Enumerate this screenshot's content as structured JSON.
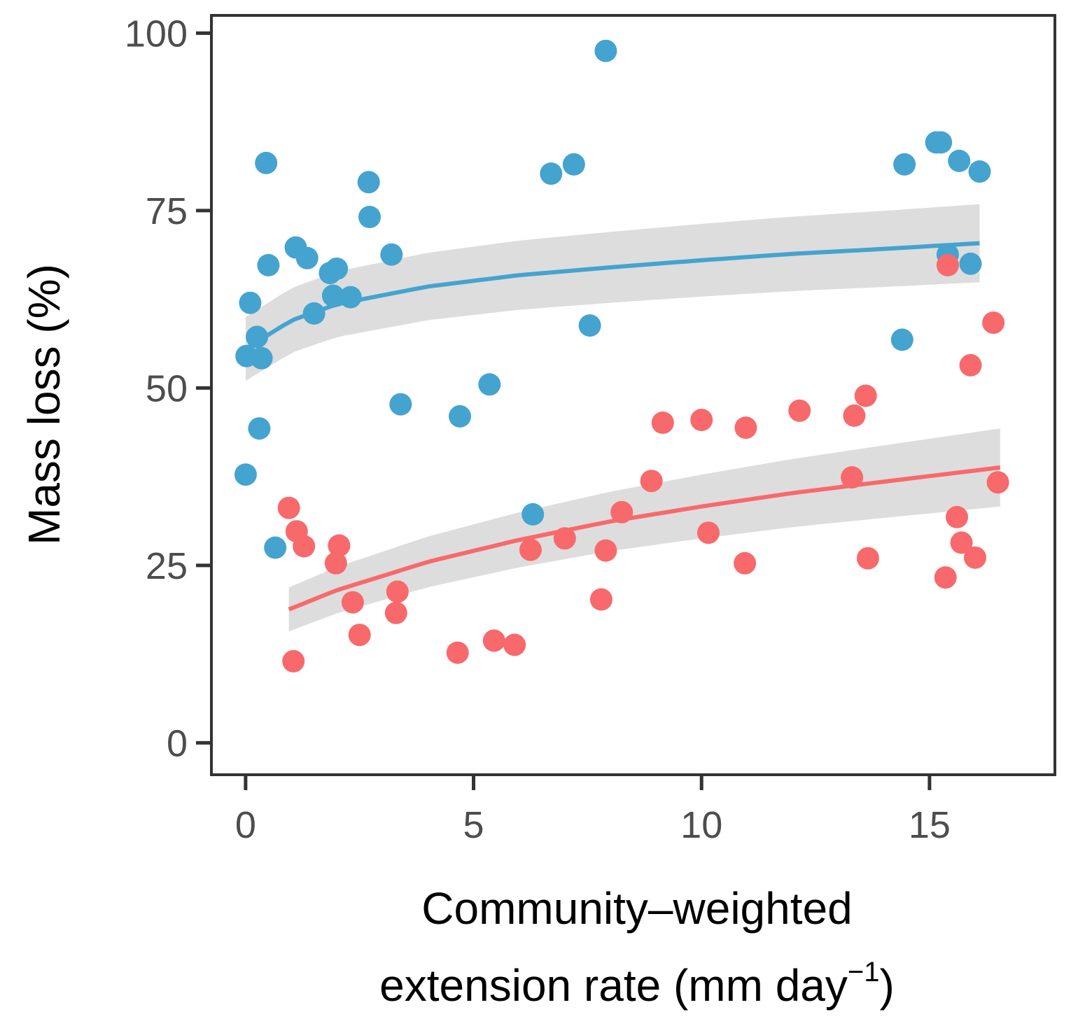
{
  "chart_data": {
    "type": "scatter",
    "xlabel_line1": "Community–weighted",
    "xlabel_line2_main": "extension rate (mm day",
    "xlabel_line2_sup": "−1",
    "xlabel_line2_end": ")",
    "ylabel": "Mass loss (%)",
    "xlim": [
      -0.75,
      17.75
    ],
    "ylim": [
      -4.5,
      102.5
    ],
    "x_ticks": [
      0,
      5,
      10,
      15
    ],
    "x_tick_labels": [
      "0",
      "5",
      "10",
      "15"
    ],
    "y_ticks": [
      0,
      25,
      50,
      75,
      100
    ],
    "y_tick_labels": [
      "0",
      "25",
      "50",
      "75",
      "100"
    ],
    "grid": false,
    "legend": "none",
    "colors": {
      "blue": "#45a3cf",
      "red": "#f8696b",
      "ribbon": "#dddddd",
      "axis": "#333333"
    },
    "series": [
      {
        "color": "#45a3cf",
        "points": [
          [
            0.0,
            37.8
          ],
          [
            0.02,
            54.5
          ],
          [
            0.1,
            62.0
          ],
          [
            0.25,
            57.2
          ],
          [
            0.3,
            44.3
          ],
          [
            0.35,
            54.2
          ],
          [
            0.45,
            81.7
          ],
          [
            0.5,
            67.3
          ],
          [
            0.65,
            27.5
          ],
          [
            1.1,
            69.8
          ],
          [
            1.35,
            68.3
          ],
          [
            1.5,
            60.5
          ],
          [
            1.85,
            66.2
          ],
          [
            1.92,
            63.0
          ],
          [
            2.0,
            66.8
          ],
          [
            2.3,
            62.8
          ],
          [
            2.7,
            79.0
          ],
          [
            2.72,
            74.1
          ],
          [
            3.2,
            68.8
          ],
          [
            3.4,
            47.7
          ],
          [
            4.7,
            46.0
          ],
          [
            5.35,
            50.5
          ],
          [
            6.3,
            32.2
          ],
          [
            6.7,
            80.2
          ],
          [
            7.2,
            81.5
          ],
          [
            7.55,
            58.8
          ],
          [
            7.9,
            97.5
          ],
          [
            14.4,
            56.8
          ],
          [
            14.45,
            81.5
          ],
          [
            15.15,
            84.6
          ],
          [
            15.25,
            84.6
          ],
          [
            15.4,
            68.8
          ],
          [
            15.65,
            82.0
          ],
          [
            15.9,
            67.5
          ],
          [
            16.1,
            80.5
          ]
        ],
        "fit": {
          "x_range": [
            0.0,
            16.1
          ],
          "points": [
            [
              0.0,
              55.5
            ],
            [
              1.0,
              59.5
            ],
            [
              2.0,
              61.8
            ],
            [
              4.0,
              64.3
            ],
            [
              6.0,
              65.9
            ],
            [
              8.0,
              67.0
            ],
            [
              10.0,
              68.0
            ],
            [
              12.0,
              68.9
            ],
            [
              14.0,
              69.6
            ],
            [
              16.1,
              70.4
            ]
          ]
        },
        "ribbon_halfwidth_start": 4.5,
        "ribbon_halfwidth_end": 5.5
      },
      {
        "color": "#f8696b",
        "points": [
          [
            0.95,
            33.1
          ],
          [
            1.05,
            11.5
          ],
          [
            1.12,
            29.8
          ],
          [
            1.28,
            27.7
          ],
          [
            1.98,
            25.3
          ],
          [
            2.05,
            27.8
          ],
          [
            2.35,
            19.8
          ],
          [
            2.5,
            15.2
          ],
          [
            3.3,
            18.3
          ],
          [
            3.33,
            21.3
          ],
          [
            4.65,
            12.7
          ],
          [
            5.45,
            14.4
          ],
          [
            5.9,
            13.8
          ],
          [
            6.25,
            27.2
          ],
          [
            7.0,
            28.8
          ],
          [
            7.8,
            20.2
          ],
          [
            7.9,
            27.1
          ],
          [
            8.25,
            32.5
          ],
          [
            8.9,
            36.9
          ],
          [
            9.15,
            45.1
          ],
          [
            10.0,
            45.5
          ],
          [
            10.15,
            29.6
          ],
          [
            10.95,
            25.3
          ],
          [
            10.97,
            44.4
          ],
          [
            12.15,
            46.8
          ],
          [
            13.3,
            37.4
          ],
          [
            13.35,
            46.1
          ],
          [
            13.6,
            48.9
          ],
          [
            13.65,
            26.0
          ],
          [
            15.35,
            23.3
          ],
          [
            15.4,
            67.3
          ],
          [
            15.6,
            31.8
          ],
          [
            15.7,
            28.2
          ],
          [
            15.9,
            53.2
          ],
          [
            16.0,
            26.1
          ],
          [
            16.4,
            59.2
          ],
          [
            16.5,
            36.7
          ]
        ],
        "fit": {
          "x_range": [
            0.95,
            16.55
          ],
          "points": [
            [
              0.95,
              18.8
            ],
            [
              2.0,
              21.5
            ],
            [
              4.0,
              25.5
            ],
            [
              6.0,
              28.6
            ],
            [
              8.0,
              31.2
            ],
            [
              10.0,
              33.3
            ],
            [
              12.0,
              35.2
            ],
            [
              14.0,
              36.8
            ],
            [
              16.55,
              38.8
            ]
          ]
        },
        "ribbon_halfwidth_start": 3.1,
        "ribbon_halfwidth_end": 5.5
      }
    ]
  }
}
